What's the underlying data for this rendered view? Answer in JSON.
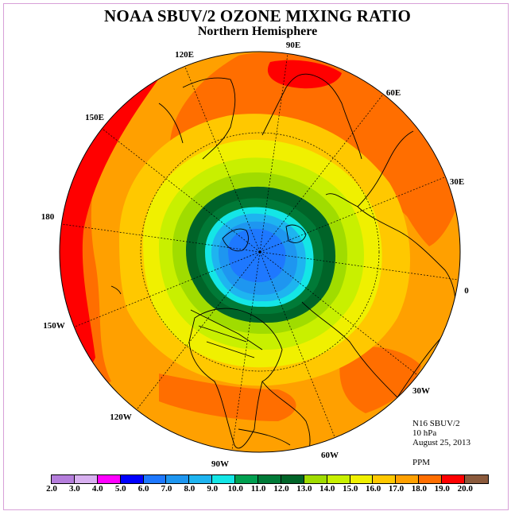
{
  "title": "NOAA SBUV/2 OZONE MIXING RATIO",
  "subtitle": "Northern Hemisphere",
  "info": {
    "instrument": "N16 SBUV/2",
    "level": "10 hPa",
    "date": "August 25, 2013",
    "units": "PPM"
  },
  "longitude_labels": [
    "90E",
    "60E",
    "30E",
    "0",
    "30W",
    "60W",
    "90W",
    "120W",
    "150W",
    "180",
    "150E",
    "120E"
  ],
  "colorbar": {
    "ticks": [
      "2.0",
      "3.0",
      "4.0",
      "5.0",
      "6.0",
      "7.0",
      "8.0",
      "9.0",
      "10.0",
      "11.0",
      "12.0",
      "13.0",
      "14.0",
      "15.0",
      "16.0",
      "17.0",
      "18.0",
      "19.0",
      "20.0"
    ],
    "colors": [
      "#b57edc",
      "#d8b0f0",
      "#ff00ff",
      "#0000ff",
      "#1e78ff",
      "#1e96f0",
      "#1eb4f0",
      "#14e6e6",
      "#00a050",
      "#007a37",
      "#006428",
      "#a0dc00",
      "#c8f000",
      "#f0f000",
      "#ffc800",
      "#ffa000",
      "#ff6e00",
      "#ff0000",
      "#8b5a3c"
    ]
  }
}
